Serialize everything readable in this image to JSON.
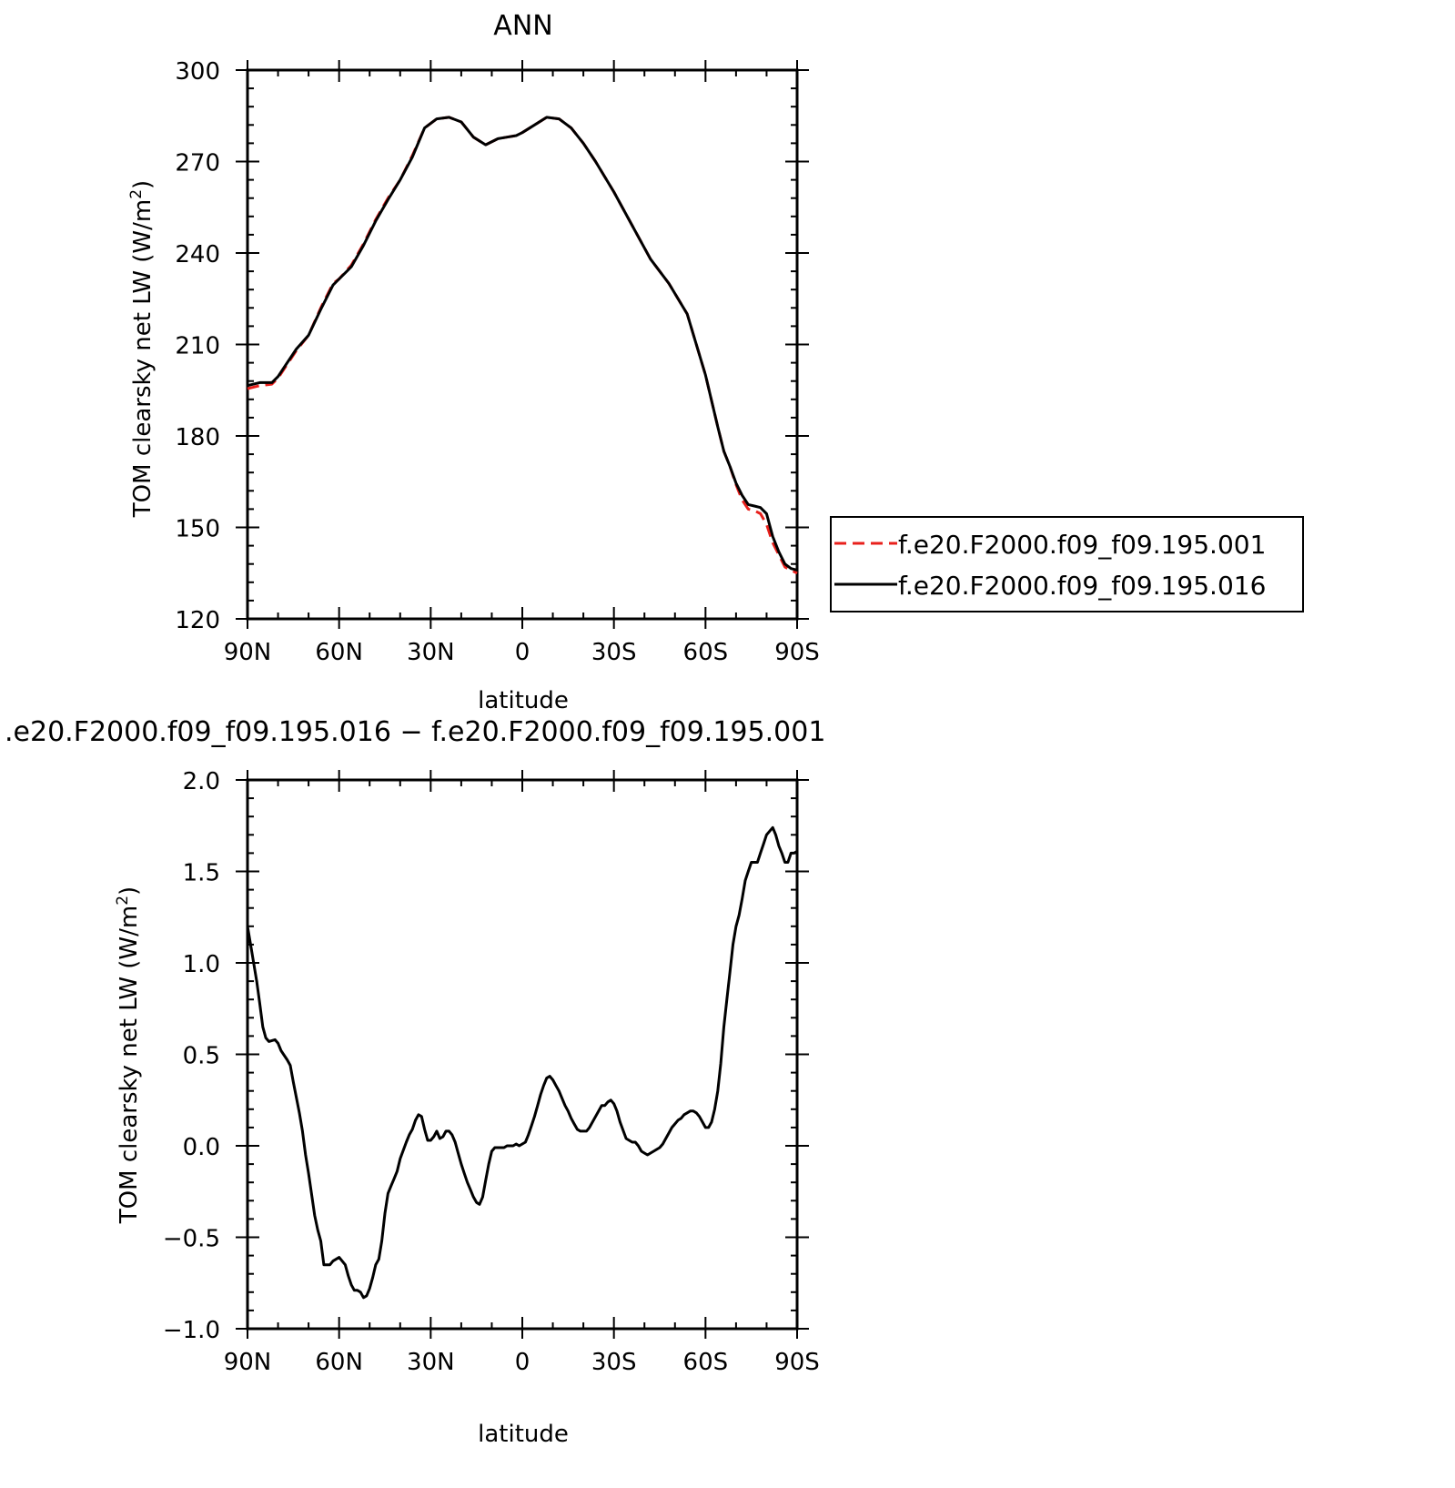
{
  "chart_data": [
    {
      "type": "line",
      "title": "ANN",
      "xlabel": "latitude",
      "ylabel": "TOM clearsky net LW (W/m²)",
      "ylabel_main": "TOM clearsky net LW (W/m",
      "ylabel_sup": "2",
      "ylabel_close": ")",
      "xlim": [
        90,
        -90
      ],
      "ylim": [
        120,
        300
      ],
      "xticks": [
        90,
        60,
        30,
        0,
        -30,
        -60,
        -90
      ],
      "xtick_labels": [
        "90N",
        "60N",
        "30N",
        "0",
        "30S",
        "60S",
        "90S"
      ],
      "yticks": [
        120,
        150,
        180,
        210,
        240,
        270,
        300
      ],
      "ytick_labels": [
        "120",
        "150",
        "180",
        "210",
        "240",
        "270",
        "300"
      ],
      "legend": "right",
      "series": [
        {
          "name": "f.e20.F2000.f09_f09.195.001",
          "color": "#e8201c",
          "style": "dashed",
          "x": [
            90,
            86,
            82,
            80,
            78,
            74,
            70,
            66,
            62,
            60,
            56,
            52,
            48,
            44,
            40,
            36,
            32,
            28,
            24,
            20,
            16,
            12,
            8,
            5,
            2,
            0,
            -4,
            -8,
            -12,
            -16,
            -20,
            -24,
            -30,
            -36,
            -42,
            -48,
            -54,
            -60,
            -64,
            -66,
            -68,
            -70,
            -72,
            -74,
            -76,
            -78,
            -80,
            -82,
            -84,
            -86,
            -88,
            -90
          ],
          "y": [
            195.5,
            196.5,
            197,
            199,
            202,
            208,
            213,
            222,
            230,
            231.5,
            236,
            243,
            251,
            258,
            264,
            272,
            281,
            284,
            284.5,
            283,
            278,
            275.5,
            277.5,
            278,
            278.5,
            279.5,
            282,
            284.5,
            284,
            281,
            276,
            270,
            260,
            249,
            238,
            230,
            220,
            200,
            183,
            175,
            170,
            164,
            159,
            156,
            155.5,
            154.5,
            151,
            145,
            141,
            137,
            136,
            135
          ]
        },
        {
          "name": "f.e20.F2000.f09_f09.195.016",
          "color": "#000000",
          "style": "solid",
          "x": [
            90,
            86,
            82,
            80,
            78,
            74,
            70,
            66,
            62,
            60,
            56,
            52,
            48,
            44,
            40,
            36,
            32,
            28,
            24,
            20,
            16,
            12,
            8,
            5,
            2,
            0,
            -4,
            -8,
            -12,
            -16,
            -20,
            -24,
            -30,
            -36,
            -42,
            -48,
            -54,
            -60,
            -64,
            -66,
            -68,
            -70,
            -72,
            -74,
            -76,
            -78,
            -80,
            -82,
            -84,
            -86,
            -88,
            -90
          ],
          "y": [
            196.5,
            197.5,
            197.5,
            199.5,
            202.5,
            208.5,
            213,
            221.5,
            229.5,
            231.5,
            235.5,
            242.5,
            250.5,
            257.5,
            264,
            271.5,
            281,
            284,
            284.5,
            283,
            278,
            275.5,
            277.5,
            278,
            278.5,
            279.5,
            282,
            284.5,
            284,
            281,
            276,
            270,
            260,
            249,
            238,
            230,
            220,
            200,
            183,
            175,
            170,
            164.5,
            160.5,
            157.5,
            157,
            156.5,
            154.5,
            147,
            142,
            138,
            136.5,
            136
          ]
        }
      ]
    },
    {
      "type": "line",
      "title": ".e20.F2000.f09_f09.195.016 − f.e20.F2000.f09_f09.195.001",
      "xlabel": "latitude",
      "ylabel": "TOM clearsky net LW (W/m²)",
      "ylabel_main": "TOM clearsky net LW (W/m",
      "ylabel_sup": "2",
      "ylabel_close": ")",
      "xlim": [
        90,
        -90
      ],
      "ylim": [
        -1.0,
        2.0
      ],
      "xticks": [
        90,
        60,
        30,
        0,
        -30,
        -60,
        -90
      ],
      "xtick_labels": [
        "90N",
        "60N",
        "30N",
        "0",
        "30S",
        "60S",
        "90S"
      ],
      "yticks": [
        -1.0,
        -0.5,
        0.0,
        0.5,
        1.0,
        1.5,
        2.0
      ],
      "ytick_labels": [
        "−1.0",
        "−0.5",
        "0.0",
        "0.5",
        "1.0",
        "1.5",
        "2.0"
      ],
      "series": [
        {
          "color": "#000000",
          "style": "solid",
          "x": [
            90,
            89,
            87,
            86,
            85,
            84,
            83,
            81,
            80,
            79,
            77,
            76,
            75,
            73,
            72,
            71,
            70,
            68,
            67,
            66,
            65,
            63,
            62,
            60,
            59,
            58,
            57,
            56,
            55,
            54,
            53,
            52,
            51,
            50,
            49,
            48,
            47,
            46,
            45,
            44,
            43,
            42,
            41,
            40,
            38,
            37,
            36,
            35,
            34,
            33,
            32,
            31,
            30,
            29,
            28,
            27,
            26,
            25,
            24,
            23,
            22,
            21,
            20,
            19,
            18,
            17,
            16,
            15,
            14,
            13,
            12,
            11,
            10,
            9,
            8,
            6,
            5,
            4,
            3,
            2,
            1,
            0,
            -1,
            -2,
            -3,
            -4,
            -5,
            -6,
            -7,
            -8,
            -9,
            -10,
            -11,
            -12,
            -13,
            -14,
            -15,
            -16,
            -17,
            -18,
            -19,
            -20,
            -21,
            -22,
            -24,
            -25,
            -26,
            -27,
            -28,
            -29,
            -30,
            -31,
            -32,
            -34,
            -35,
            -36,
            -37,
            -38,
            -39,
            -40,
            -41,
            -42,
            -43,
            -44,
            -45,
            -46,
            -47,
            -48,
            -49,
            -50,
            -51,
            -52,
            -53,
            -54,
            -55,
            -56,
            -57,
            -58,
            -59,
            -60,
            -61,
            -62,
            -63,
            -64,
            -65,
            -66,
            -67,
            -68,
            -69,
            -70,
            -71,
            -72,
            -73,
            -74,
            -75,
            -76,
            -77,
            -78,
            -79,
            -80,
            -81,
            -82,
            -83,
            -84,
            -85,
            -86,
            -87,
            -88,
            -89,
            -90
          ],
          "y": [
            1.2,
            1.1,
            0.9,
            0.78,
            0.65,
            0.59,
            0.57,
            0.58,
            0.56,
            0.52,
            0.47,
            0.44,
            0.35,
            0.18,
            0.08,
            -0.05,
            -0.15,
            -0.38,
            -0.46,
            -0.52,
            -0.65,
            -0.65,
            -0.63,
            -0.61,
            -0.63,
            -0.65,
            -0.71,
            -0.76,
            -0.79,
            -0.79,
            -0.8,
            -0.83,
            -0.82,
            -0.78,
            -0.72,
            -0.65,
            -0.62,
            -0.52,
            -0.37,
            -0.26,
            -0.22,
            -0.18,
            -0.14,
            -0.07,
            0.02,
            0.06,
            0.09,
            0.14,
            0.17,
            0.16,
            0.09,
            0.03,
            0.03,
            0.05,
            0.08,
            0.04,
            0.05,
            0.08,
            0.08,
            0.06,
            0.02,
            -0.04,
            -0.1,
            -0.15,
            -0.2,
            -0.24,
            -0.28,
            -0.31,
            -0.32,
            -0.28,
            -0.19,
            -0.1,
            -0.03,
            -0.01,
            -0.01,
            -0.01,
            0.0,
            0.0,
            0.0,
            0.01,
            0.0,
            0.01,
            0.02,
            0.06,
            0.11,
            0.16,
            0.22,
            0.28,
            0.33,
            0.37,
            0.38,
            0.36,
            0.33,
            0.3,
            0.26,
            0.22,
            0.19,
            0.15,
            0.12,
            0.09,
            0.08,
            0.08,
            0.08,
            0.1,
            0.16,
            0.19,
            0.22,
            0.22,
            0.24,
            0.25,
            0.23,
            0.19,
            0.13,
            0.04,
            0.03,
            0.02,
            0.02,
            0.0,
            -0.03,
            -0.04,
            -0.05,
            -0.04,
            -0.03,
            -0.02,
            -0.01,
            0.01,
            0.04,
            0.07,
            0.1,
            0.12,
            0.14,
            0.15,
            0.17,
            0.18,
            0.19,
            0.19,
            0.18,
            0.16,
            0.13,
            0.1,
            0.1,
            0.13,
            0.2,
            0.3,
            0.45,
            0.65,
            0.8,
            0.95,
            1.1,
            1.2,
            1.26,
            1.35,
            1.45,
            1.5,
            1.55,
            1.55,
            1.55,
            1.6,
            1.65,
            1.7,
            1.72,
            1.74,
            1.7,
            1.64,
            1.6,
            1.55,
            1.55,
            1.6,
            1.6,
            1.61
          ]
        }
      ]
    }
  ]
}
